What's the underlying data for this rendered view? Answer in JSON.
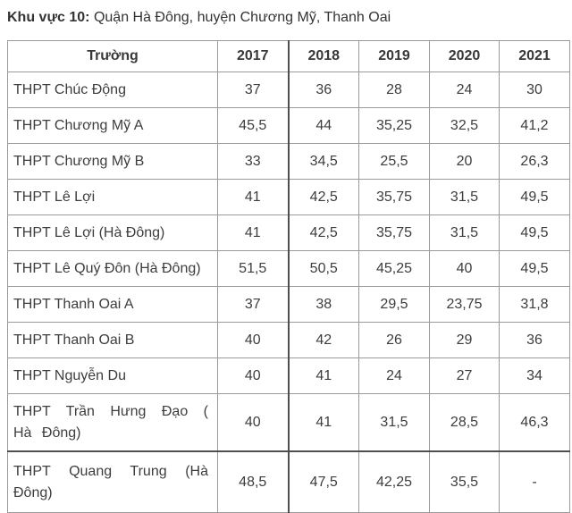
{
  "title": {
    "bold": "Khu vực 10:",
    "rest": " Quận Hà Đông, huyện Chương Mỹ, Thanh Oai"
  },
  "table": {
    "columns": [
      "Trường",
      "2017",
      "2018",
      "2019",
      "2020",
      "2021"
    ],
    "rows": [
      {
        "school": "THPT Chúc Động",
        "scores": [
          "37",
          "36",
          "28",
          "24",
          "30"
        ]
      },
      {
        "school": "THPT Chương Mỹ A",
        "scores": [
          "45,5",
          "44",
          "35,25",
          "32,5",
          "41,2"
        ]
      },
      {
        "school": "THPT Chương Mỹ B",
        "scores": [
          "33",
          "34,5",
          "25,5",
          "20",
          "26,3"
        ]
      },
      {
        "school": "THPT Lê Lợi",
        "scores": [
          "41",
          "42,5",
          "35,75",
          "31,5",
          "49,5"
        ]
      },
      {
        "school": "THPT Lê Lợi (Hà Đông)",
        "scores": [
          "41",
          "42,5",
          "35,75",
          "31,5",
          "49,5"
        ]
      },
      {
        "school": "THPT Lê Quý Đôn (Hà Đông)",
        "scores": [
          "51,5",
          "50,5",
          "45,25",
          "40",
          "49,5"
        ]
      },
      {
        "school": "THPT Thanh Oai A",
        "scores": [
          "37",
          "38",
          "29,5",
          "23,75",
          "31,8"
        ]
      },
      {
        "school": "THPT Thanh Oai B",
        "scores": [
          "40",
          "42",
          "26",
          "29",
          "36"
        ]
      },
      {
        "school": "THPT Nguyễn Du",
        "scores": [
          "40",
          "41",
          "24",
          "27",
          "34"
        ]
      },
      {
        "school": "THPT Trần Hưng Đạo ( Hà Đông)",
        "scores": [
          "40",
          "41",
          "31,5",
          "28,5",
          "46,3"
        ]
      },
      {
        "school": "THPT Quang Trung (Hà Đông)",
        "scores": [
          "48,5",
          "47,5",
          "42,25",
          "35,5",
          "-"
        ]
      }
    ]
  },
  "colors": {
    "text": "#3d3d3d",
    "border": "#9a9a9a",
    "border_dark": "#4f4f4f",
    "background": "#ffffff"
  }
}
